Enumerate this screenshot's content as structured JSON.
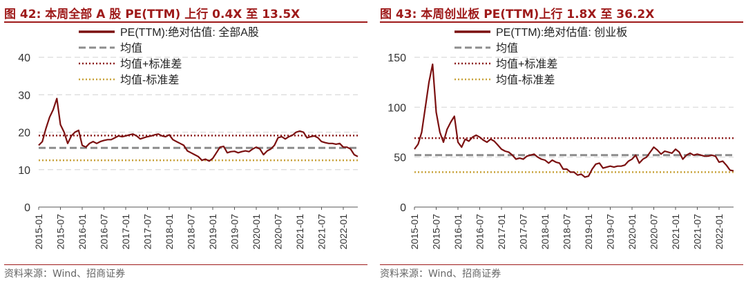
{
  "charts": [
    {
      "figure_label": "图 42:",
      "title": "本周全部 A 股 PE(TTM) 上行 0.4X 至 13.5X",
      "source": "资料来源：Wind、招商证券",
      "colors": {
        "pe": "#7b1010",
        "mean": "#8c8c8c",
        "plus": "#8b1a1a",
        "minus": "#c8a23a",
        "title": "#9e1a1a"
      }
    },
    {
      "figure_label": "图 43:",
      "title": "本周创业板 PE(TTM)上行 1.8X 至 36.2X",
      "source": "资料来源：Wind、招商证券",
      "colors": {
        "pe": "#7b1010",
        "mean": "#8c8c8c",
        "plus": "#8b1a1a",
        "minus": "#c8a23a",
        "title": "#9e1a1a"
      }
    }
  ],
  "chart_data": [
    {
      "type": "line",
      "title": "本周全部 A 股 PE(TTM) 上行 0.4X 至 13.5X",
      "ylim": [
        0,
        40
      ],
      "yticks": [
        0,
        10,
        20,
        30,
        40
      ],
      "x_categories": [
        "2015-01",
        "2015-07",
        "2016-01",
        "2016-07",
        "2017-01",
        "2017-07",
        "2018-01",
        "2018-07",
        "2019-01",
        "2019-07",
        "2020-01",
        "2020-07",
        "2021-01",
        "2021-07",
        "2022-01"
      ],
      "grid": true,
      "legend_position": "top",
      "series": [
        {
          "name": "PE(TTM):绝对估值: 全部A股",
          "style": "solid",
          "points": [
            [
              "2015-01",
              16.5
            ],
            [
              "2015-02",
              17.5
            ],
            [
              "2015-03",
              21
            ],
            [
              "2015-04",
              24
            ],
            [
              "2015-05",
              26
            ],
            [
              "2015-06",
              29
            ],
            [
              "2015-07",
              22
            ],
            [
              "2015-08",
              20
            ],
            [
              "2015-09",
              17
            ],
            [
              "2015-10",
              19
            ],
            [
              "2015-11",
              20
            ],
            [
              "2015-12",
              20.5
            ],
            [
              "2016-01",
              16.5
            ],
            [
              "2016-02",
              16
            ],
            [
              "2016-03",
              17
            ],
            [
              "2016-04",
              17.5
            ],
            [
              "2016-05",
              17
            ],
            [
              "2016-06",
              17.5
            ],
            [
              "2016-07",
              17.8
            ],
            [
              "2016-08",
              18
            ],
            [
              "2016-09",
              18
            ],
            [
              "2016-10",
              18.5
            ],
            [
              "2016-11",
              19
            ],
            [
              "2016-12",
              18.8
            ],
            [
              "2017-01",
              19
            ],
            [
              "2017-02",
              19.3
            ],
            [
              "2017-03",
              19.5
            ],
            [
              "2017-04",
              19
            ],
            [
              "2017-05",
              18.2
            ],
            [
              "2017-06",
              18.5
            ],
            [
              "2017-07",
              18.8
            ],
            [
              "2017-08",
              19
            ],
            [
              "2017-09",
              19.3
            ],
            [
              "2017-10",
              19.5
            ],
            [
              "2017-11",
              19
            ],
            [
              "2017-12",
              18.8
            ],
            [
              "2018-01",
              19.3
            ],
            [
              "2018-02",
              18
            ],
            [
              "2018-03",
              17.5
            ],
            [
              "2018-04",
              17
            ],
            [
              "2018-05",
              16.5
            ],
            [
              "2018-06",
              15
            ],
            [
              "2018-07",
              14.5
            ],
            [
              "2018-08",
              14
            ],
            [
              "2018-09",
              13.5
            ],
            [
              "2018-10",
              12.5
            ],
            [
              "2018-11",
              12.8
            ],
            [
              "2018-12",
              12.3
            ],
            [
              "2019-01",
              13
            ],
            [
              "2019-02",
              14.5
            ],
            [
              "2019-03",
              16
            ],
            [
              "2019-04",
              16.2
            ],
            [
              "2019-05",
              14.5
            ],
            [
              "2019-06",
              14.8
            ],
            [
              "2019-07",
              14.9
            ],
            [
              "2019-08",
              14.5
            ],
            [
              "2019-09",
              14.8
            ],
            [
              "2019-10",
              15
            ],
            [
              "2019-11",
              14.8
            ],
            [
              "2019-12",
              15.5
            ],
            [
              "2020-01",
              16
            ],
            [
              "2020-02",
              15.5
            ],
            [
              "2020-03",
              14
            ],
            [
              "2020-04",
              15
            ],
            [
              "2020-05",
              15.5
            ],
            [
              "2020-06",
              16.5
            ],
            [
              "2020-07",
              18.5
            ],
            [
              "2020-08",
              18.8
            ],
            [
              "2020-09",
              18.2
            ],
            [
              "2020-10",
              18.8
            ],
            [
              "2020-11",
              19.2
            ],
            [
              "2020-12",
              20
            ],
            [
              "2021-01",
              20.3
            ],
            [
              "2021-02",
              20
            ],
            [
              "2021-03",
              18.5
            ],
            [
              "2021-04",
              18.8
            ],
            [
              "2021-05",
              19
            ],
            [
              "2021-06",
              18.5
            ],
            [
              "2021-07",
              17.5
            ],
            [
              "2021-08",
              17.2
            ],
            [
              "2021-09",
              17
            ],
            [
              "2021-10",
              17
            ],
            [
              "2021-11",
              16.8
            ],
            [
              "2021-12",
              17
            ],
            [
              "2022-01",
              16
            ],
            [
              "2022-02",
              16
            ],
            [
              "2022-03",
              15.5
            ],
            [
              "2022-04",
              14
            ],
            [
              "2022-05",
              13.5
            ]
          ]
        },
        {
          "name": "均值",
          "style": "dashed",
          "value": 15.8
        },
        {
          "name": "均值+标准差",
          "style": "dotted",
          "value": 19.1
        },
        {
          "name": "均值-标准差",
          "style": "dotted",
          "value": 12.5
        }
      ]
    },
    {
      "type": "line",
      "title": "本周创业板 PE(TTM)上行 1.8X 至 36.2X",
      "ylim": [
        0,
        150
      ],
      "yticks": [
        0,
        50,
        100,
        150
      ],
      "x_categories": [
        "2015-01",
        "2015-07",
        "2016-01",
        "2016-07",
        "2017-01",
        "2017-07",
        "2018-01",
        "2018-07",
        "2019-01",
        "2019-07",
        "2020-01",
        "2020-07",
        "2021-01",
        "2021-07",
        "2022-01"
      ],
      "grid": true,
      "legend_position": "top",
      "series": [
        {
          "name": "PE(TTM):绝对估值: 创业板",
          "style": "solid",
          "points": [
            [
              "2015-01",
              58
            ],
            [
              "2015-02",
              63
            ],
            [
              "2015-03",
              75
            ],
            [
              "2015-04",
              100
            ],
            [
              "2015-05",
              125
            ],
            [
              "2015-06",
              143
            ],
            [
              "2015-07",
              95
            ],
            [
              "2015-08",
              75
            ],
            [
              "2015-09",
              65
            ],
            [
              "2015-10",
              78
            ],
            [
              "2015-11",
              85
            ],
            [
              "2015-12",
              91
            ],
            [
              "2016-01",
              65
            ],
            [
              "2016-02",
              60
            ],
            [
              "2016-03",
              68
            ],
            [
              "2016-04",
              66
            ],
            [
              "2016-05",
              70
            ],
            [
              "2016-06",
              72
            ],
            [
              "2016-07",
              70
            ],
            [
              "2016-08",
              67
            ],
            [
              "2016-09",
              65
            ],
            [
              "2016-10",
              68
            ],
            [
              "2016-11",
              66
            ],
            [
              "2016-12",
              62
            ],
            [
              "2017-01",
              58
            ],
            [
              "2017-02",
              56
            ],
            [
              "2017-03",
              55
            ],
            [
              "2017-04",
              52
            ],
            [
              "2017-05",
              48
            ],
            [
              "2017-06",
              49
            ],
            [
              "2017-07",
              48
            ],
            [
              "2017-08",
              51
            ],
            [
              "2017-09",
              52
            ],
            [
              "2017-10",
              53
            ],
            [
              "2017-11",
              50
            ],
            [
              "2017-12",
              48
            ],
            [
              "2018-01",
              47
            ],
            [
              "2018-02",
              44
            ],
            [
              "2018-03",
              47
            ],
            [
              "2018-04",
              45
            ],
            [
              "2018-05",
              44
            ],
            [
              "2018-06",
              38
            ],
            [
              "2018-07",
              38
            ],
            [
              "2018-08",
              35
            ],
            [
              "2018-09",
              35
            ],
            [
              "2018-10",
              32
            ],
            [
              "2018-11",
              33
            ],
            [
              "2018-12",
              30
            ],
            [
              "2019-01",
              31
            ],
            [
              "2019-02",
              38
            ],
            [
              "2019-03",
              43
            ],
            [
              "2019-04",
              44
            ],
            [
              "2019-05",
              39
            ],
            [
              "2019-06",
              40
            ],
            [
              "2019-07",
              41
            ],
            [
              "2019-08",
              40
            ],
            [
              "2019-09",
              41
            ],
            [
              "2019-10",
              41
            ],
            [
              "2019-11",
              42
            ],
            [
              "2019-12",
              46
            ],
            [
              "2020-01",
              48
            ],
            [
              "2020-02",
              52
            ],
            [
              "2020-03",
              44
            ],
            [
              "2020-04",
              48
            ],
            [
              "2020-05",
              50
            ],
            [
              "2020-06",
              55
            ],
            [
              "2020-07",
              60
            ],
            [
              "2020-08",
              57
            ],
            [
              "2020-09",
              53
            ],
            [
              "2020-10",
              56
            ],
            [
              "2020-11",
              55
            ],
            [
              "2020-12",
              54
            ],
            [
              "2021-01",
              58
            ],
            [
              "2021-02",
              55
            ],
            [
              "2021-03",
              48
            ],
            [
              "2021-04",
              52
            ],
            [
              "2021-05",
              54
            ],
            [
              "2021-06",
              52
            ],
            [
              "2021-07",
              53
            ],
            [
              "2021-08",
              52
            ],
            [
              "2021-09",
              51
            ],
            [
              "2021-10",
              51
            ],
            [
              "2021-11",
              52
            ],
            [
              "2021-12",
              51
            ],
            [
              "2022-01",
              45
            ],
            [
              "2022-02",
              46
            ],
            [
              "2022-03",
              42
            ],
            [
              "2022-04",
              37
            ],
            [
              "2022-05",
              36.2
            ]
          ]
        },
        {
          "name": "均值",
          "style": "dashed",
          "value": 52
        },
        {
          "name": "均值+标准差",
          "style": "dotted",
          "value": 69
        },
        {
          "name": "均值-标准差",
          "style": "dotted",
          "value": 35
        }
      ]
    }
  ]
}
